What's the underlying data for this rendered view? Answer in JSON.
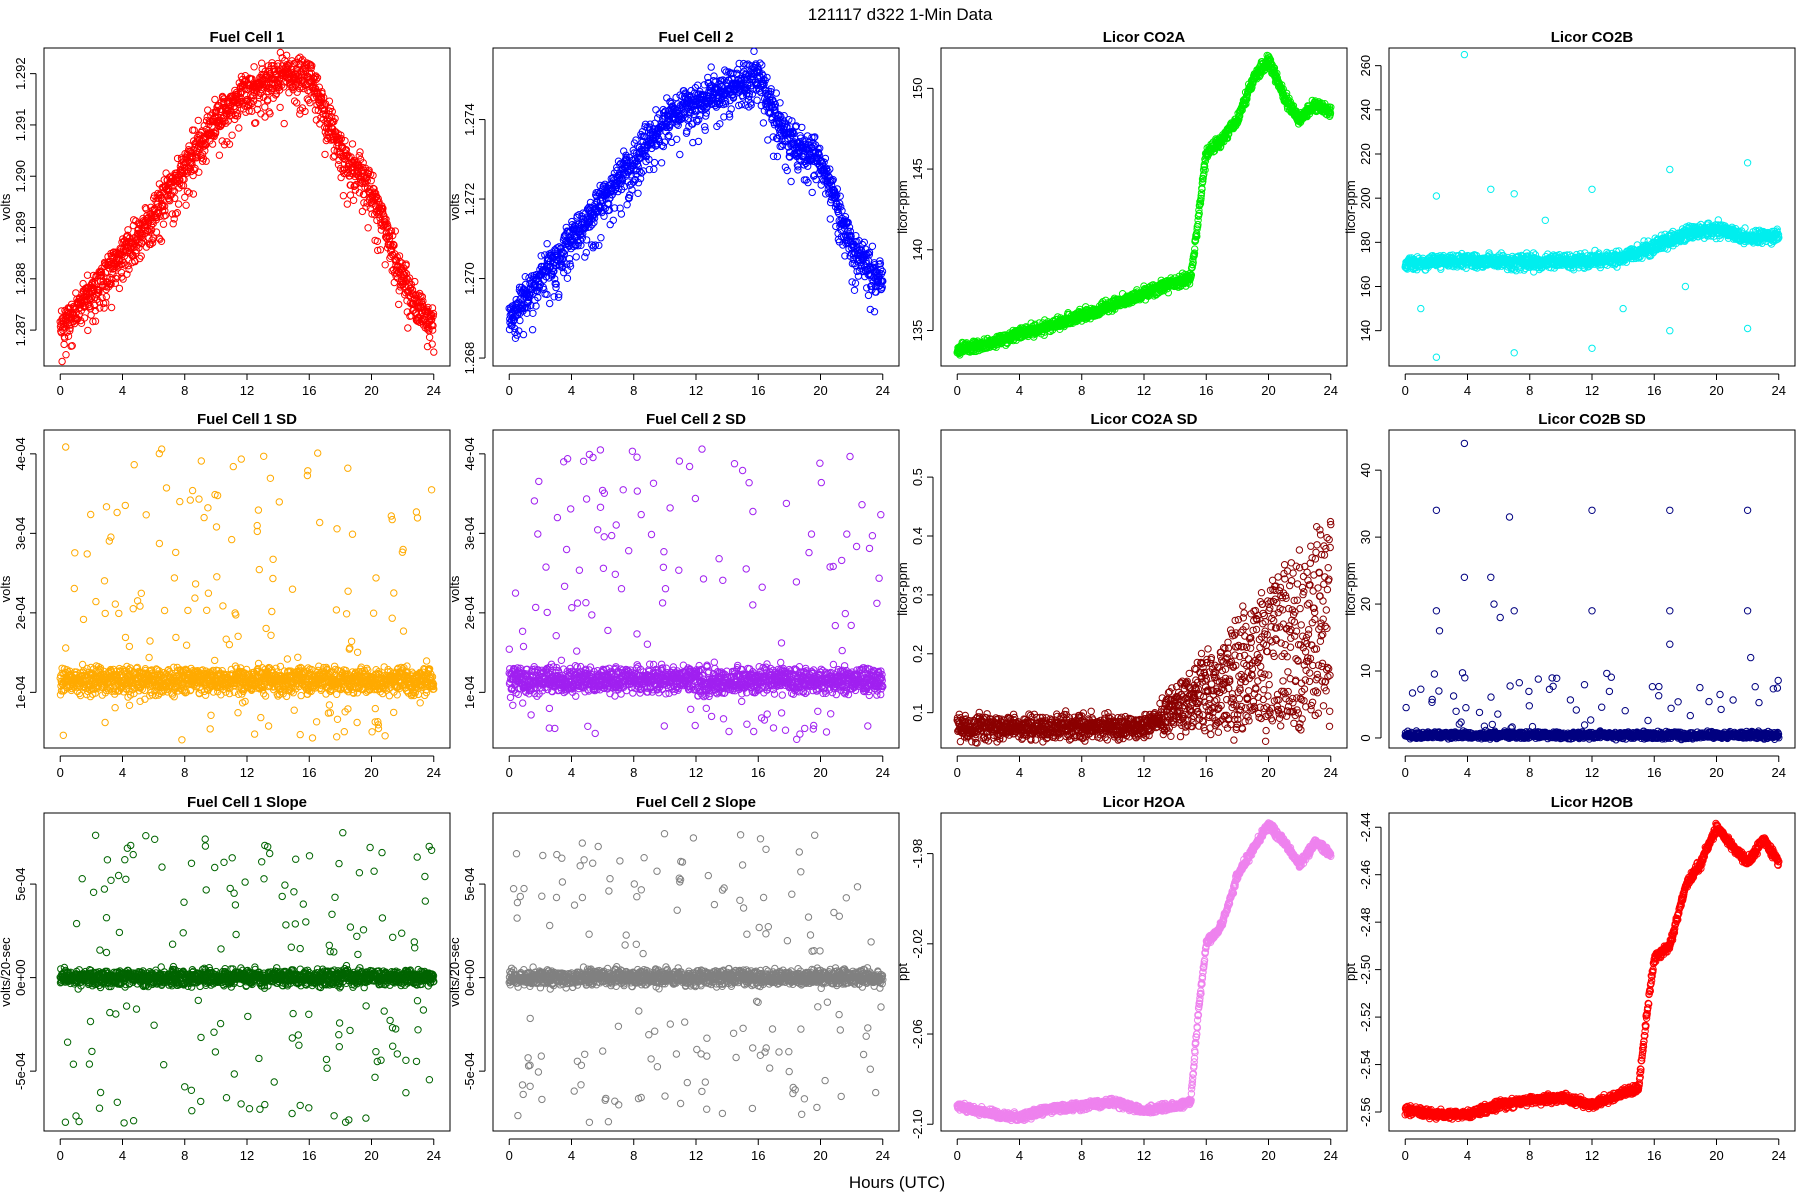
{
  "header": {
    "title": "121117   d322   1-Min Data"
  },
  "x_axis_label": "Hours (UTC)",
  "chart_data": [
    {
      "id": "fc1",
      "type": "scatter",
      "title": "Fuel Cell 1",
      "ylabel": "volts",
      "color": "#ff0000",
      "xlim": [
        0,
        24
      ],
      "xticks": [
        "0",
        "4",
        "8",
        "12",
        "16",
        "20",
        "24"
      ],
      "ylim": [
        1.2863,
        1.2925
      ],
      "yticks": [
        {
          "v": 1.287,
          "label": "1.287"
        },
        {
          "v": 1.288,
          "label": "1.288"
        },
        {
          "v": 1.289,
          "label": "1.289"
        },
        {
          "v": 1.29,
          "label": "1.290"
        },
        {
          "v": 1.291,
          "label": "1.291"
        },
        {
          "v": 1.292,
          "label": "1.292"
        }
      ],
      "model": "curve",
      "curve": [
        [
          0,
          1.2871
        ],
        [
          2,
          1.2877
        ],
        [
          4,
          1.2885
        ],
        [
          6,
          1.2893
        ],
        [
          8,
          1.2902
        ],
        [
          10,
          1.2911
        ],
        [
          12,
          1.2917
        ],
        [
          14,
          1.292
        ],
        [
          16,
          1.292
        ],
        [
          17,
          1.2913
        ],
        [
          18,
          1.2905
        ],
        [
          20,
          1.2898
        ],
        [
          22,
          1.288
        ],
        [
          23,
          1.2875
        ],
        [
          24,
          1.2871
        ]
      ],
      "noise": 0.00025,
      "downspread": 0.0007
    },
    {
      "id": "fc2",
      "type": "scatter",
      "title": "Fuel Cell 2",
      "ylabel": "volts",
      "color": "#0000ff",
      "xlim": [
        0,
        24
      ],
      "xticks": [
        "0",
        "4",
        "8",
        "12",
        "16",
        "20",
        "24"
      ],
      "ylim": [
        1.2678,
        1.2758
      ],
      "yticks": [
        {
          "v": 1.268,
          "label": "1.268"
        },
        {
          "v": 1.27,
          "label": "1.270"
        },
        {
          "v": 1.272,
          "label": "1.272"
        },
        {
          "v": 1.274,
          "label": "1.274"
        }
      ],
      "model": "curve",
      "curve": [
        [
          0,
          1.269
        ],
        [
          2,
          1.27
        ],
        [
          4,
          1.271
        ],
        [
          6,
          1.272
        ],
        [
          8,
          1.273
        ],
        [
          10,
          1.274
        ],
        [
          12,
          1.2745
        ],
        [
          14,
          1.2748
        ],
        [
          16,
          1.2752
        ],
        [
          17,
          1.2742
        ],
        [
          18,
          1.2735
        ],
        [
          20,
          1.273
        ],
        [
          21,
          1.272
        ],
        [
          22,
          1.2708
        ],
        [
          24,
          1.27
        ]
      ],
      "noise": 0.0003,
      "downspread": 0.0009
    },
    {
      "id": "co2a",
      "type": "scatter",
      "title": "Licor CO2A",
      "ylabel": "licor-ppm",
      "color": "#00ee00",
      "xlim": [
        0,
        24
      ],
      "xticks": [
        "0",
        "4",
        "8",
        "12",
        "16",
        "20",
        "24"
      ],
      "ylim": [
        132.8,
        152.5
      ],
      "yticks": [
        {
          "v": 135,
          "label": "135"
        },
        {
          "v": 140,
          "label": "140"
        },
        {
          "v": 145,
          "label": "145"
        },
        {
          "v": 150,
          "label": "150"
        }
      ],
      "model": "curve",
      "curve": [
        [
          0,
          133.8
        ],
        [
          2,
          134.2
        ],
        [
          4,
          134.8
        ],
        [
          6,
          135.3
        ],
        [
          8,
          135.9
        ],
        [
          10,
          136.6
        ],
        [
          12,
          137.3
        ],
        [
          14,
          138.0
        ],
        [
          15,
          138.2
        ],
        [
          15.5,
          142.0
        ],
        [
          16,
          146.0
        ],
        [
          17,
          146.8
        ],
        [
          18,
          148.0
        ],
        [
          19,
          150.5
        ],
        [
          20,
          151.8
        ],
        [
          21,
          149.5
        ],
        [
          22,
          148.0
        ],
        [
          23,
          149.0
        ],
        [
          24,
          148.5
        ]
      ],
      "noise": 0.25,
      "downspread": 0
    },
    {
      "id": "co2b",
      "type": "scatter",
      "title": "Licor CO2B",
      "ylabel": "licor-ppm",
      "color": "#00eeee",
      "xlim": [
        0,
        24
      ],
      "xticks": [
        "0",
        "4",
        "8",
        "12",
        "16",
        "20",
        "24"
      ],
      "ylim": [
        124,
        268
      ],
      "yticks": [
        {
          "v": 140,
          "label": "140"
        },
        {
          "v": 160,
          "label": "160"
        },
        {
          "v": 180,
          "label": "180"
        },
        {
          "v": 200,
          "label": "200"
        },
        {
          "v": 220,
          "label": "220"
        },
        {
          "v": 240,
          "label": "240"
        },
        {
          "v": 260,
          "label": "260"
        }
      ],
      "model": "curve",
      "curve": [
        [
          0,
          170
        ],
        [
          4,
          172
        ],
        [
          8,
          171
        ],
        [
          12,
          172
        ],
        [
          14,
          173
        ],
        [
          16,
          178
        ],
        [
          18,
          184
        ],
        [
          20,
          186
        ],
        [
          22,
          182
        ],
        [
          24,
          183
        ]
      ],
      "noise": 2.2,
      "downspread": 0,
      "outliers": [
        [
          2,
          128
        ],
        [
          2,
          201
        ],
        [
          3.8,
          265
        ],
        [
          5.5,
          204
        ],
        [
          7,
          202
        ],
        [
          7,
          130
        ],
        [
          12,
          204
        ],
        [
          12,
          132
        ],
        [
          17,
          213
        ],
        [
          17,
          140
        ],
        [
          22,
          216
        ],
        [
          22,
          141
        ],
        [
          1,
          150
        ],
        [
          9,
          190
        ],
        [
          14,
          150
        ],
        [
          18,
          160
        ]
      ]
    },
    {
      "id": "fc1sd",
      "type": "scatter",
      "title": "Fuel Cell 1 SD",
      "ylabel": "volts",
      "color": "#ffaa00",
      "xlim": [
        0,
        24
      ],
      "xticks": [
        "0",
        "4",
        "8",
        "12",
        "16",
        "20",
        "24"
      ],
      "ylim": [
        3e-05,
        0.00043
      ],
      "yticks": [
        {
          "v": 0.0001,
          "label": "1e-04"
        },
        {
          "v": 0.0002,
          "label": "2e-04"
        },
        {
          "v": 0.0003,
          "label": "3e-04"
        },
        {
          "v": 0.0004,
          "label": "4e-04"
        }
      ],
      "model": "band",
      "base": 0.000115,
      "noise": 1.2e-05,
      "low": 4e-05,
      "high": 0.00041,
      "sparse_count": 150
    },
    {
      "id": "fc2sd",
      "type": "scatter",
      "title": "Fuel Cell 2 SD",
      "ylabel": "volts",
      "color": "#a020f0",
      "xlim": [
        0,
        24
      ],
      "xticks": [
        "0",
        "4",
        "8",
        "12",
        "16",
        "20",
        "24"
      ],
      "ylim": [
        3e-05,
        0.00043
      ],
      "yticks": [
        {
          "v": 0.0001,
          "label": "1e-04"
        },
        {
          "v": 0.0002,
          "label": "2e-04"
        },
        {
          "v": 0.0003,
          "label": "3e-04"
        },
        {
          "v": 0.0004,
          "label": "4e-04"
        }
      ],
      "model": "band",
      "base": 0.000115,
      "noise": 1.2e-05,
      "low": 4e-05,
      "high": 0.00041,
      "sparse_count": 140
    },
    {
      "id": "co2asd",
      "type": "scatter",
      "title": "Licor CO2A SD",
      "ylabel": "licor-ppm",
      "color": "#8b0000",
      "xlim": [
        0,
        24
      ],
      "xticks": [
        "0",
        "4",
        "8",
        "12",
        "16",
        "20",
        "24"
      ],
      "ylim": [
        0.04,
        0.58
      ],
      "yticks": [
        {
          "v": 0.1,
          "label": "0.1"
        },
        {
          "v": 0.2,
          "label": "0.2"
        },
        {
          "v": 0.3,
          "label": "0.3"
        },
        {
          "v": 0.4,
          "label": "0.4"
        },
        {
          "v": 0.5,
          "label": "0.5"
        }
      ],
      "model": "growing",
      "base": 0.075,
      "noise": 0.015,
      "grow_start": 12,
      "grow_max": 0.45
    },
    {
      "id": "co2bsd",
      "type": "scatter",
      "title": "Licor CO2B SD",
      "ylabel": "licor-ppm",
      "color": "#000080",
      "xlim": [
        0,
        24
      ],
      "xticks": [
        "0",
        "4",
        "8",
        "12",
        "16",
        "20",
        "24"
      ],
      "ylim": [
        -1.5,
        46
      ],
      "yticks": [
        {
          "v": 0,
          "label": "0"
        },
        {
          "v": 10,
          "label": "10"
        },
        {
          "v": 20,
          "label": "20"
        },
        {
          "v": 30,
          "label": "30"
        },
        {
          "v": 40,
          "label": "40"
        }
      ],
      "model": "band",
      "base": 0.4,
      "noise": 0.35,
      "low": 0.8,
      "high": 10,
      "sparse_count": 60,
      "outliers": [
        [
          2,
          34
        ],
        [
          3.8,
          44
        ],
        [
          2,
          19
        ],
        [
          2.2,
          16
        ],
        [
          3.8,
          24
        ],
        [
          5.5,
          24
        ],
        [
          5.7,
          20
        ],
        [
          6.1,
          18
        ],
        [
          6.7,
          33
        ],
        [
          7,
          19
        ],
        [
          12,
          34
        ],
        [
          12,
          19
        ],
        [
          17,
          34
        ],
        [
          17,
          19
        ],
        [
          17,
          14
        ],
        [
          22,
          34
        ],
        [
          22,
          19
        ],
        [
          22.2,
          12
        ]
      ]
    },
    {
      "id": "fc1slope",
      "type": "scatter",
      "title": "Fuel Cell 1 Slope",
      "ylabel": "volts/20-sec",
      "color": "#006400",
      "xlim": [
        0,
        24
      ],
      "xticks": [
        "0",
        "4",
        "8",
        "12",
        "16",
        "20",
        "24"
      ],
      "ylim": [
        -0.00082,
        0.00088
      ],
      "yticks": [
        {
          "v": -0.0005,
          "label": "-5e-04"
        },
        {
          "v": 0,
          "label": "0e+00"
        },
        {
          "v": 0.0005,
          "label": "5e-04"
        }
      ],
      "model": "slope",
      "base": 0,
      "noise": 3e-05,
      "low": 0.00012,
      "high": 0.00078,
      "sparse_count": 150
    },
    {
      "id": "fc2slope",
      "type": "scatter",
      "title": "Fuel Cell 2 Slope",
      "ylabel": "volts/20-sec",
      "color": "#808080",
      "xlim": [
        0,
        24
      ],
      "xticks": [
        "0",
        "4",
        "8",
        "12",
        "16",
        "20",
        "24"
      ],
      "ylim": [
        -0.00082,
        0.00088
      ],
      "yticks": [
        {
          "v": -0.0005,
          "label": "-5e-04"
        },
        {
          "v": 0,
          "label": "0e+00"
        },
        {
          "v": 0.0005,
          "label": "5e-04"
        }
      ],
      "model": "slope",
      "base": 0,
      "noise": 3e-05,
      "low": 0.00012,
      "high": 0.00078,
      "sparse_count": 150
    },
    {
      "id": "h2oa",
      "type": "scatter",
      "title": "Licor H2OA",
      "ylabel": "ppt",
      "color": "#ee82ee",
      "xlim": [
        0,
        24
      ],
      "xticks": [
        "0",
        "4",
        "8",
        "12",
        "16",
        "20",
        "24"
      ],
      "ylim": [
        -2.103,
        -1.962
      ],
      "yticks": [
        {
          "v": -2.1,
          "label": "-2.10"
        },
        {
          "v": -2.06,
          "label": "-2.06"
        },
        {
          "v": -2.02,
          "label": "-2.02"
        },
        {
          "v": -1.98,
          "label": "-1.98"
        }
      ],
      "model": "curve",
      "curve": [
        [
          0,
          -2.092
        ],
        [
          2,
          -2.095
        ],
        [
          4,
          -2.097
        ],
        [
          6,
          -2.093
        ],
        [
          8,
          -2.092
        ],
        [
          10,
          -2.09
        ],
        [
          12,
          -2.094
        ],
        [
          14,
          -2.092
        ],
        [
          15,
          -2.09
        ],
        [
          15.5,
          -2.05
        ],
        [
          16,
          -2.02
        ],
        [
          17,
          -2.012
        ],
        [
          18,
          -1.99
        ],
        [
          19,
          -1.978
        ],
        [
          20,
          -1.967
        ],
        [
          21,
          -1.975
        ],
        [
          22,
          -1.985
        ],
        [
          23,
          -1.975
        ],
        [
          24,
          -1.98
        ]
      ],
      "noise": 0.0012,
      "downspread": 0
    },
    {
      "id": "h2ob",
      "type": "scatter",
      "title": "Licor H2OB",
      "ylabel": "ppt",
      "color": "#ff0000",
      "xlim": [
        0,
        24
      ],
      "xticks": [
        "0",
        "4",
        "8",
        "12",
        "16",
        "20",
        "24"
      ],
      "ylim": [
        -2.568,
        -2.434
      ],
      "yticks": [
        {
          "v": -2.56,
          "label": "-2.56"
        },
        {
          "v": -2.54,
          "label": "-2.54"
        },
        {
          "v": -2.52,
          "label": "-2.52"
        },
        {
          "v": -2.5,
          "label": "-2.50"
        },
        {
          "v": -2.48,
          "label": "-2.48"
        },
        {
          "v": -2.46,
          "label": "-2.46"
        },
        {
          "v": -2.44,
          "label": "-2.44"
        }
      ],
      "model": "curve",
      "curve": [
        [
          0,
          -2.559
        ],
        [
          2,
          -2.561
        ],
        [
          4,
          -2.561
        ],
        [
          6,
          -2.557
        ],
        [
          8,
          -2.555
        ],
        [
          10,
          -2.554
        ],
        [
          12,
          -2.557
        ],
        [
          14,
          -2.552
        ],
        [
          15,
          -2.55
        ],
        [
          15.5,
          -2.52
        ],
        [
          16,
          -2.495
        ],
        [
          17,
          -2.49
        ],
        [
          18,
          -2.465
        ],
        [
          19,
          -2.455
        ],
        [
          20,
          -2.44
        ],
        [
          21,
          -2.448
        ],
        [
          22,
          -2.455
        ],
        [
          23,
          -2.445
        ],
        [
          24,
          -2.455
        ]
      ],
      "noise": 0.0012,
      "downspread": 0
    }
  ]
}
